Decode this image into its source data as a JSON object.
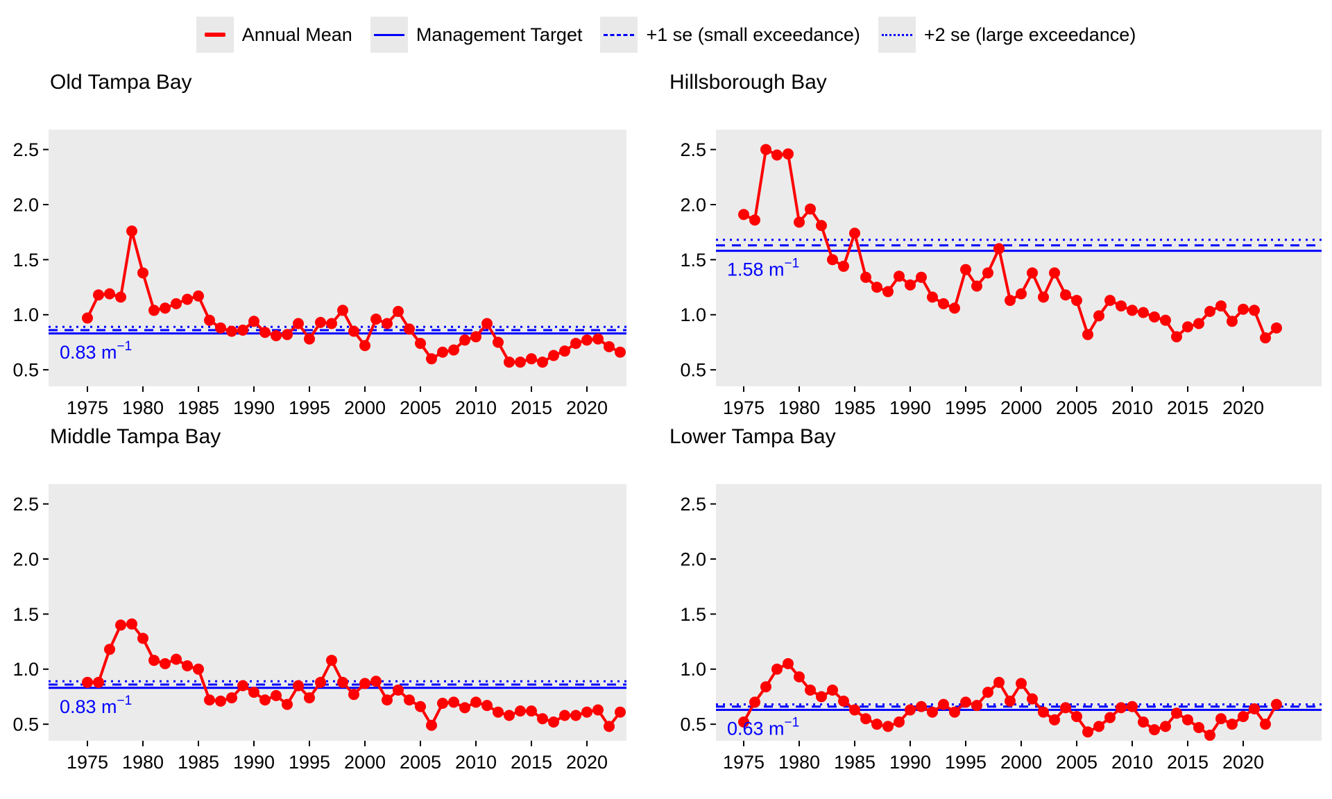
{
  "colors": {
    "series": "#ff0000",
    "reference": "#0000ff",
    "panel_bg": "#ebebeb",
    "legend_key_bg": "#e9e9e9",
    "text": "#000000"
  },
  "legend": {
    "items": [
      {
        "label": "Annual Mean",
        "style": "solid-red"
      },
      {
        "label": "Management Target",
        "style": "solid-blue"
      },
      {
        "label": "+1 se (small exceedance)",
        "style": "dashed-blue"
      },
      {
        "label": "+2 se (large exceedance)",
        "style": "dotted-blue"
      }
    ]
  },
  "axes": {
    "x_tick_labels": [
      "1975",
      "1980",
      "1985",
      "1990",
      "1995",
      "2000",
      "2005",
      "2010",
      "2015",
      "2020"
    ],
    "y_tick_labels": [
      "0.5",
      "1.0",
      "1.5",
      "2.0",
      "2.5"
    ]
  },
  "chart_data": [
    {
      "type": "line",
      "title": "Old Tampa Bay",
      "ylabel": "",
      "xlabel": "",
      "grid": false,
      "legend_position": "top",
      "ylim": [
        0.35,
        2.68
      ],
      "year_start": 1975,
      "year_end": 2023,
      "values": [
        0.97,
        1.18,
        1.19,
        1.16,
        1.76,
        1.38,
        1.04,
        1.06,
        1.1,
        1.14,
        1.17,
        0.95,
        0.88,
        0.85,
        0.86,
        0.94,
        0.84,
        0.81,
        0.82,
        0.92,
        0.78,
        0.93,
        0.92,
        1.04,
        0.85,
        0.72,
        0.96,
        0.92,
        1.03,
        0.87,
        0.74,
        0.6,
        0.66,
        0.68,
        0.77,
        0.8,
        0.92,
        0.75,
        0.57,
        0.57,
        0.6,
        0.57,
        0.63,
        0.67,
        0.74,
        0.77,
        0.78,
        0.71,
        0.66
      ],
      "management_target": 0.83,
      "plus1se": 0.86,
      "plus2se": 0.89,
      "target_label_text": "0.83 m",
      "target_label_superscript": "−1"
    },
    {
      "type": "line",
      "title": "Hillsborough Bay",
      "ylabel": "",
      "xlabel": "",
      "grid": false,
      "legend_position": "top",
      "ylim": [
        0.35,
        2.68
      ],
      "year_start": 1975,
      "year_end": 2023,
      "values": [
        1.91,
        1.86,
        2.5,
        2.45,
        2.46,
        1.84,
        1.96,
        1.81,
        1.5,
        1.44,
        1.74,
        1.34,
        1.25,
        1.21,
        1.35,
        1.27,
        1.34,
        1.16,
        1.1,
        1.06,
        1.41,
        1.26,
        1.38,
        1.6,
        1.13,
        1.19,
        1.38,
        1.16,
        1.38,
        1.18,
        1.13,
        0.82,
        0.99,
        1.13,
        1.08,
        1.04,
        1.02,
        0.98,
        0.95,
        0.8,
        0.89,
        0.92,
        1.03,
        1.08,
        0.94,
        1.05,
        1.04,
        0.79,
        0.88
      ],
      "management_target": 1.58,
      "plus1se": 1.63,
      "plus2se": 1.68,
      "target_label_text": "1.58 m",
      "target_label_superscript": "−1"
    },
    {
      "type": "line",
      "title": "Middle Tampa Bay",
      "ylabel": "",
      "xlabel": "",
      "grid": false,
      "legend_position": "top",
      "ylim": [
        0.35,
        2.68
      ],
      "year_start": 1975,
      "year_end": 2023,
      "values": [
        0.88,
        0.88,
        1.18,
        1.4,
        1.41,
        1.28,
        1.08,
        1.05,
        1.09,
        1.03,
        1.0,
        0.72,
        0.71,
        0.74,
        0.85,
        0.79,
        0.72,
        0.76,
        0.68,
        0.85,
        0.74,
        0.88,
        1.08,
        0.88,
        0.77,
        0.87,
        0.89,
        0.72,
        0.81,
        0.72,
        0.66,
        0.49,
        0.69,
        0.7,
        0.65,
        0.7,
        0.67,
        0.61,
        0.58,
        0.62,
        0.62,
        0.55,
        0.52,
        0.58,
        0.58,
        0.61,
        0.63,
        0.48,
        0.61
      ],
      "management_target": 0.83,
      "plus1se": 0.86,
      "plus2se": 0.89,
      "target_label_text": "0.83 m",
      "target_label_superscript": "−1"
    },
    {
      "type": "line",
      "title": "Lower Tampa Bay",
      "ylabel": "",
      "xlabel": "",
      "grid": false,
      "legend_position": "top",
      "ylim": [
        0.35,
        2.68
      ],
      "year_start": 1975,
      "year_end": 2023,
      "values": [
        0.52,
        0.7,
        0.84,
        1.0,
        1.05,
        0.93,
        0.81,
        0.75,
        0.81,
        0.71,
        0.63,
        0.55,
        0.5,
        0.48,
        0.52,
        0.63,
        0.66,
        0.61,
        0.68,
        0.61,
        0.7,
        0.67,
        0.79,
        0.88,
        0.71,
        0.87,
        0.73,
        0.61,
        0.54,
        0.65,
        0.57,
        0.43,
        0.48,
        0.56,
        0.65,
        0.66,
        0.52,
        0.45,
        0.48,
        0.6,
        0.54,
        0.47,
        0.4,
        0.55,
        0.5,
        0.57,
        0.64,
        0.5,
        0.68
      ],
      "management_target": 0.63,
      "plus1se": 0.66,
      "plus2se": 0.68,
      "target_label_text": "0.63 m",
      "target_label_superscript": "−1"
    }
  ]
}
